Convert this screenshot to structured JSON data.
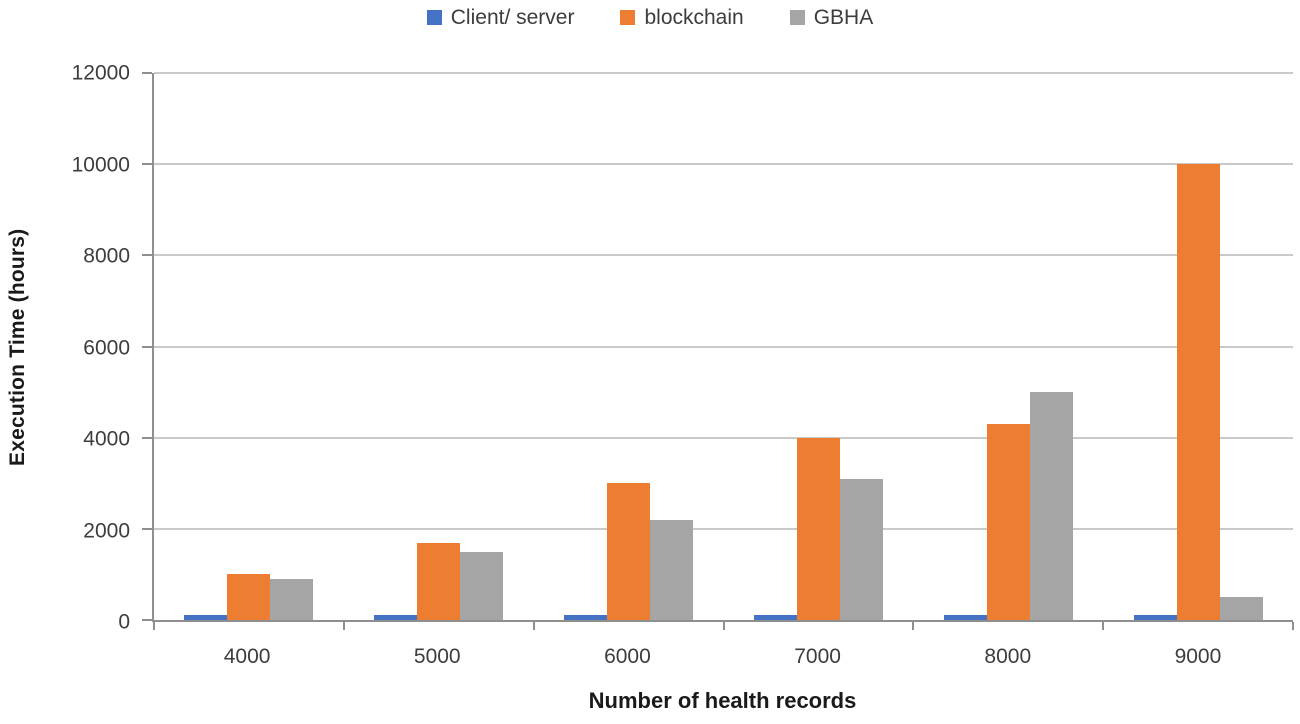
{
  "chart_data": {
    "type": "bar",
    "title": "",
    "xlabel": "Number of health records",
    "ylabel": "Execution Time (hours)",
    "categories": [
      "4000",
      "5000",
      "6000",
      "7000",
      "8000",
      "9000"
    ],
    "series": [
      {
        "name": "Client/ server",
        "color": "#4472C4",
        "values": [
          100,
          100,
          100,
          100,
          100,
          100
        ]
      },
      {
        "name": "blockchain",
        "color": "#ED7D31",
        "values": [
          1000,
          1700,
          3000,
          4000,
          4300,
          10000
        ]
      },
      {
        "name": "GBHA",
        "color": "#A5A5A5",
        "values": [
          900,
          1500,
          2200,
          3100,
          5000,
          500
        ]
      }
    ],
    "ylim": [
      0,
      12000
    ],
    "ytick_step": 2000,
    "ytick_labels": [
      "0",
      "2000",
      "4000",
      "6000",
      "8000",
      "10000",
      "12000"
    ],
    "grid": true,
    "legend_position": "top",
    "colors": {
      "gridline": "#C9C9C9",
      "axis": "#8F8F8F",
      "tick_label": "#3D3D3D",
      "axis_title": "#1A1A1A",
      "background": "#FFFFFF"
    }
  }
}
